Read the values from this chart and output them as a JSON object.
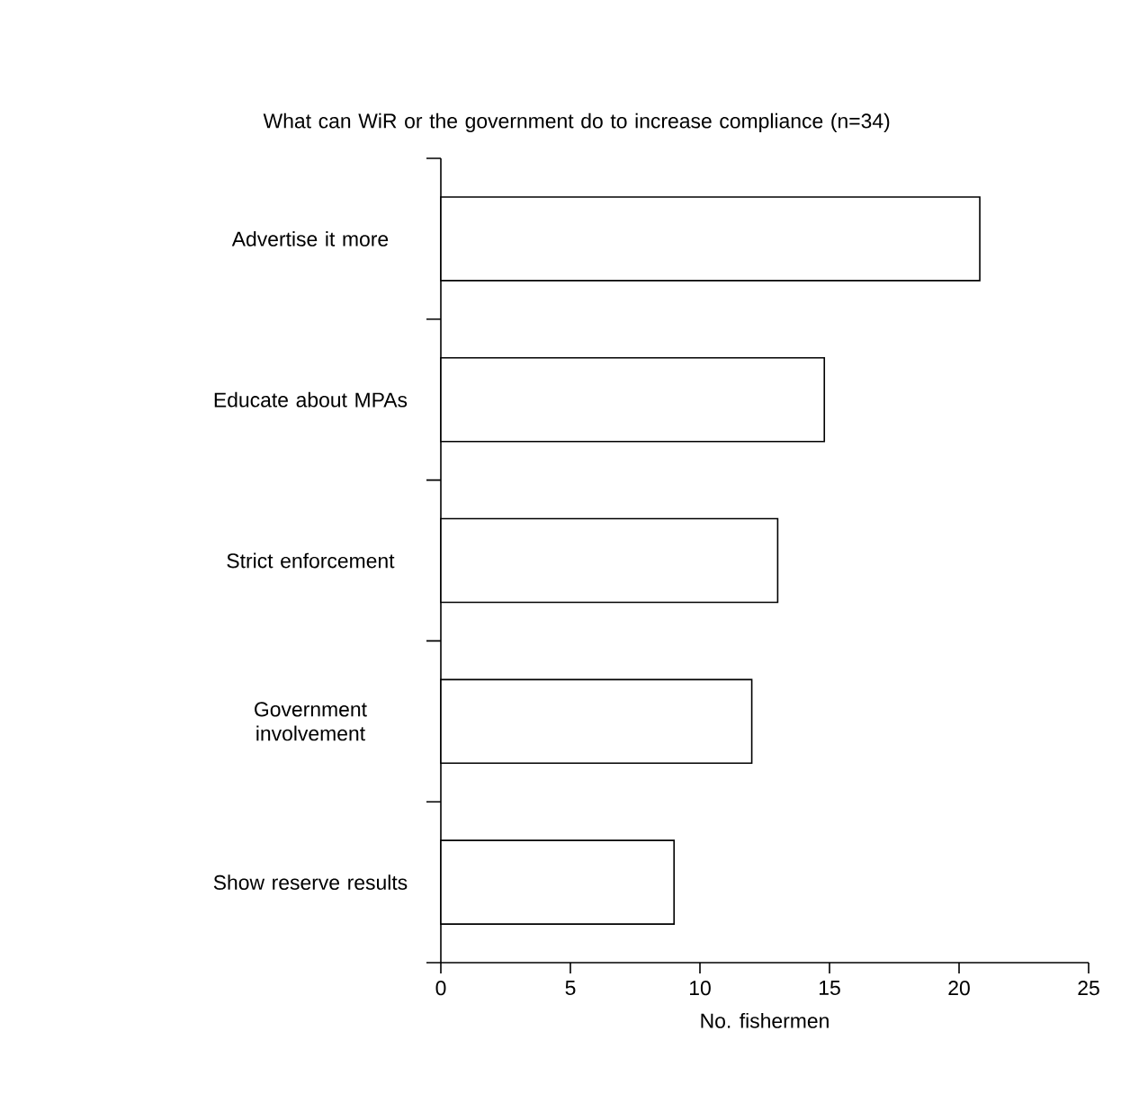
{
  "chart_data": {
    "type": "bar",
    "orientation": "horizontal",
    "title": "What can WiR or the government do to increase compliance (n=34)",
    "xlabel": "No. fishermen",
    "categories": [
      "Advertise it more",
      "Educate about MPAs",
      "Strict enforcement",
      "Government involvement",
      "Show reserve results"
    ],
    "values": [
      20.8,
      14.8,
      13,
      12,
      9
    ],
    "color": "#ffffff",
    "xlim": [
      0,
      25
    ],
    "xticks": [
      0,
      5,
      10,
      15,
      20,
      25
    ]
  }
}
